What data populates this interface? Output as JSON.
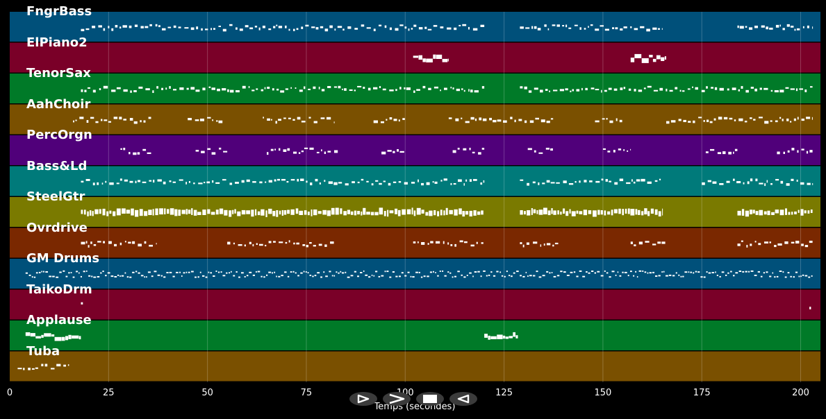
{
  "chart_data": {
    "type": "piano-roll",
    "xlabel": "Temps (secondes)",
    "xlim": [
      0,
      205
    ],
    "xticks": [
      0,
      25,
      50,
      75,
      100,
      125,
      150,
      175,
      200
    ],
    "grid": true,
    "tracks": [
      {
        "name": "FngrBass",
        "color": "#00507a",
        "segments": [
          [
            18,
            120
          ],
          [
            129,
            165
          ],
          [
            184,
            203
          ]
        ],
        "style": "sparse"
      },
      {
        "name": "ElPiano2",
        "color": "#7a0028",
        "segments": [
          [
            102,
            111
          ],
          [
            157,
            166
          ]
        ],
        "style": "block"
      },
      {
        "name": "TenorSax",
        "color": "#007a28",
        "segments": [
          [
            18,
            120
          ],
          [
            129,
            203
          ]
        ],
        "style": "sparse"
      },
      {
        "name": "AahChoir",
        "color": "#7a5000",
        "segments": [
          [
            16,
            36
          ],
          [
            45,
            54
          ],
          [
            64,
            82
          ],
          [
            92,
            100
          ],
          [
            111,
            138
          ],
          [
            148,
            155
          ],
          [
            166,
            203
          ]
        ],
        "style": "sparse"
      },
      {
        "name": "PercOrgn",
        "color": "#50007a",
        "segments": [
          [
            28,
            36
          ],
          [
            47,
            55
          ],
          [
            65,
            83
          ],
          [
            94,
            100
          ],
          [
            112,
            120
          ],
          [
            131,
            138
          ],
          [
            150,
            157
          ],
          [
            176,
            184
          ],
          [
            194,
            203
          ]
        ],
        "style": "sparse"
      },
      {
        "name": "Bass&Ld",
        "color": "#007a7a",
        "segments": [
          [
            18,
            120
          ],
          [
            129,
            165
          ],
          [
            175,
            203
          ]
        ],
        "style": "sparse"
      },
      {
        "name": "SteelGtr",
        "color": "#7a7a00",
        "segments": [
          [
            18,
            120
          ],
          [
            129,
            165
          ],
          [
            184,
            203
          ]
        ],
        "style": "dense"
      },
      {
        "name": "Ovrdrive",
        "color": "#7a2800",
        "segments": [
          [
            18,
            37
          ],
          [
            55,
            82
          ],
          [
            102,
            120
          ],
          [
            129,
            139
          ],
          [
            157,
            166
          ],
          [
            184,
            203
          ]
        ],
        "style": "sparse"
      },
      {
        "name": "GM Drums",
        "color": "#00507a",
        "segments": [
          [
            4,
            203
          ]
        ],
        "style": "drums"
      },
      {
        "name": "TaikoDrm",
        "color": "#7a0028",
        "segments": [
          [
            18,
            18.5
          ],
          [
            202.2,
            202.6
          ]
        ],
        "style": "sparse"
      },
      {
        "name": "Applause",
        "color": "#007a28",
        "segments": [
          [
            4,
            18
          ],
          [
            120,
            128.5
          ]
        ],
        "style": "block"
      },
      {
        "name": "Tuba",
        "color": "#7a5000",
        "segments": [
          [
            2,
            15
          ]
        ],
        "style": "sparse"
      }
    ]
  },
  "controls": [
    {
      "icon": "play-icon",
      "glyph": "▷"
    },
    {
      "icon": "fast-forward-icon",
      "glyph": ">"
    },
    {
      "icon": "stop-icon",
      "glyph": "■"
    },
    {
      "icon": "rewind-icon",
      "glyph": "◁"
    }
  ]
}
